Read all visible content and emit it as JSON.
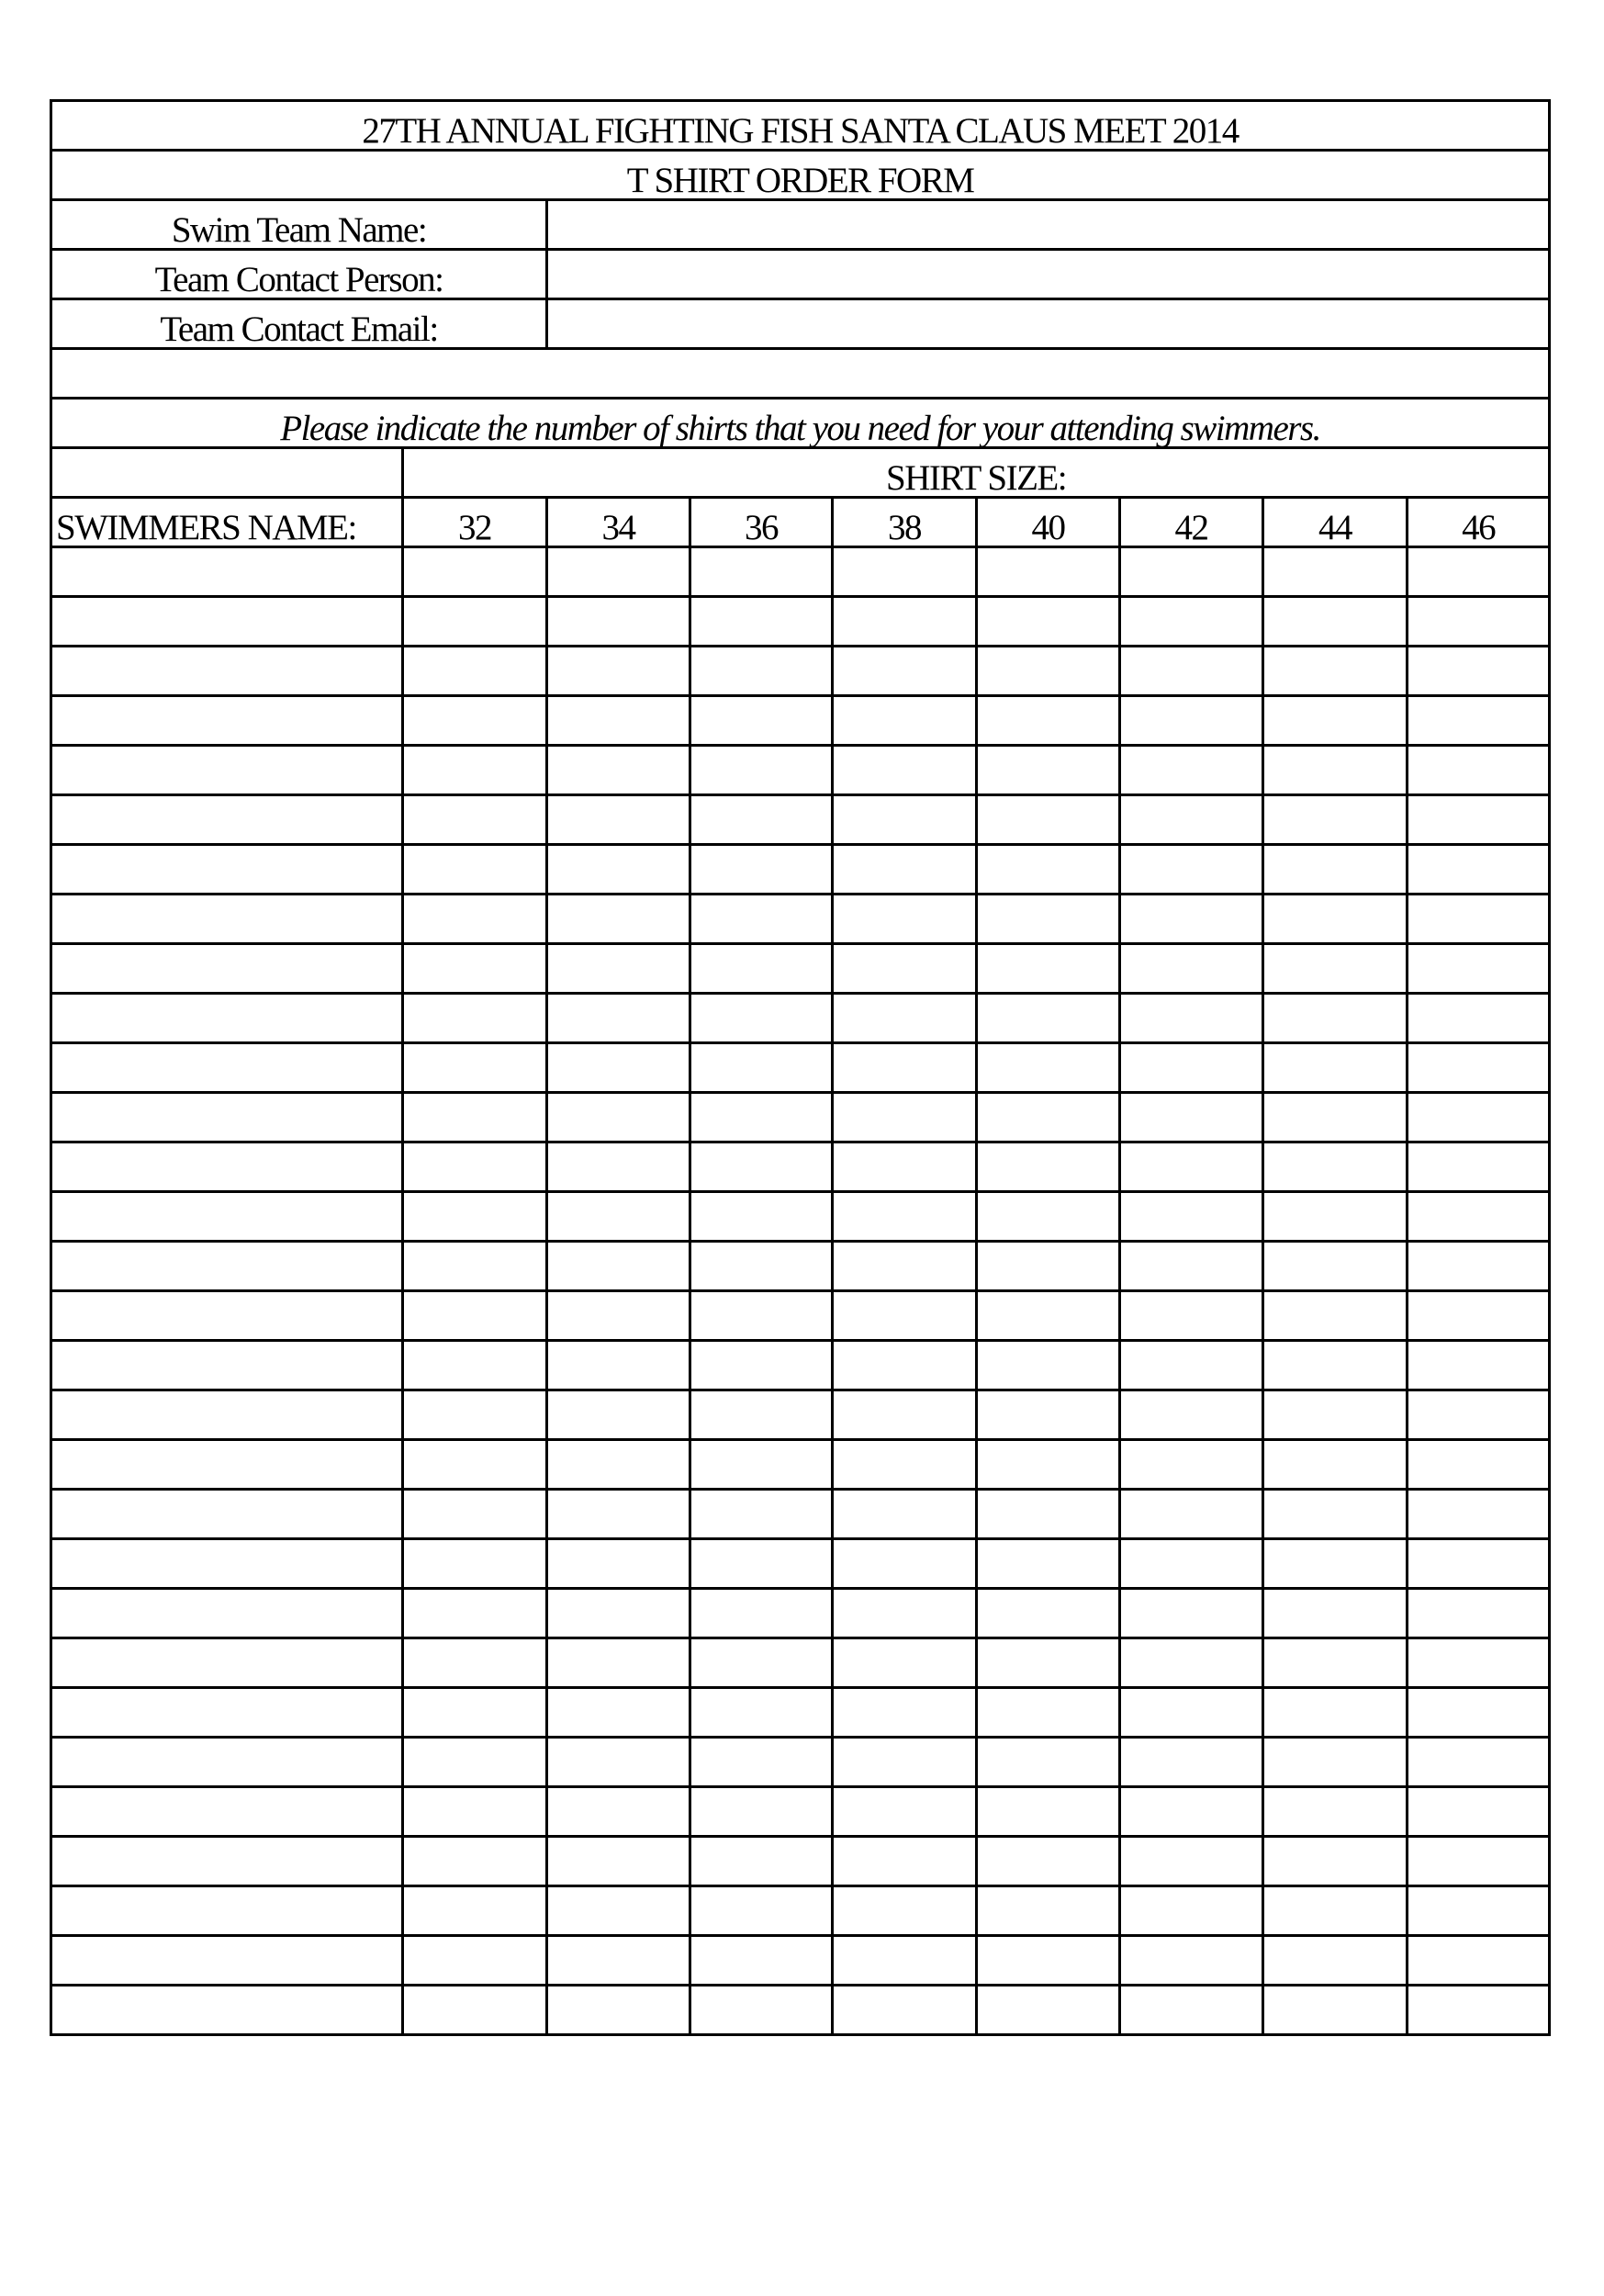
{
  "form": {
    "title": "27TH ANNUAL FIGHTING FISH SANTA CLAUS MEET 2014",
    "subtitle": "T SHIRT ORDER FORM",
    "fields": [
      {
        "label": "Swim Team Name:",
        "value": ""
      },
      {
        "label": "Team Contact Person:",
        "value": ""
      },
      {
        "label": "Team Contact Email:",
        "value": ""
      }
    ],
    "instruction": "Please indicate the number of shirts that you need for your attending swimmers.",
    "shirt_size_label": "SHIRT SIZE:",
    "name_column_label": "SWIMMERS NAME:",
    "sizes": [
      "32",
      "34",
      "36",
      "38",
      "40",
      "42",
      "44",
      "46"
    ]
  }
}
